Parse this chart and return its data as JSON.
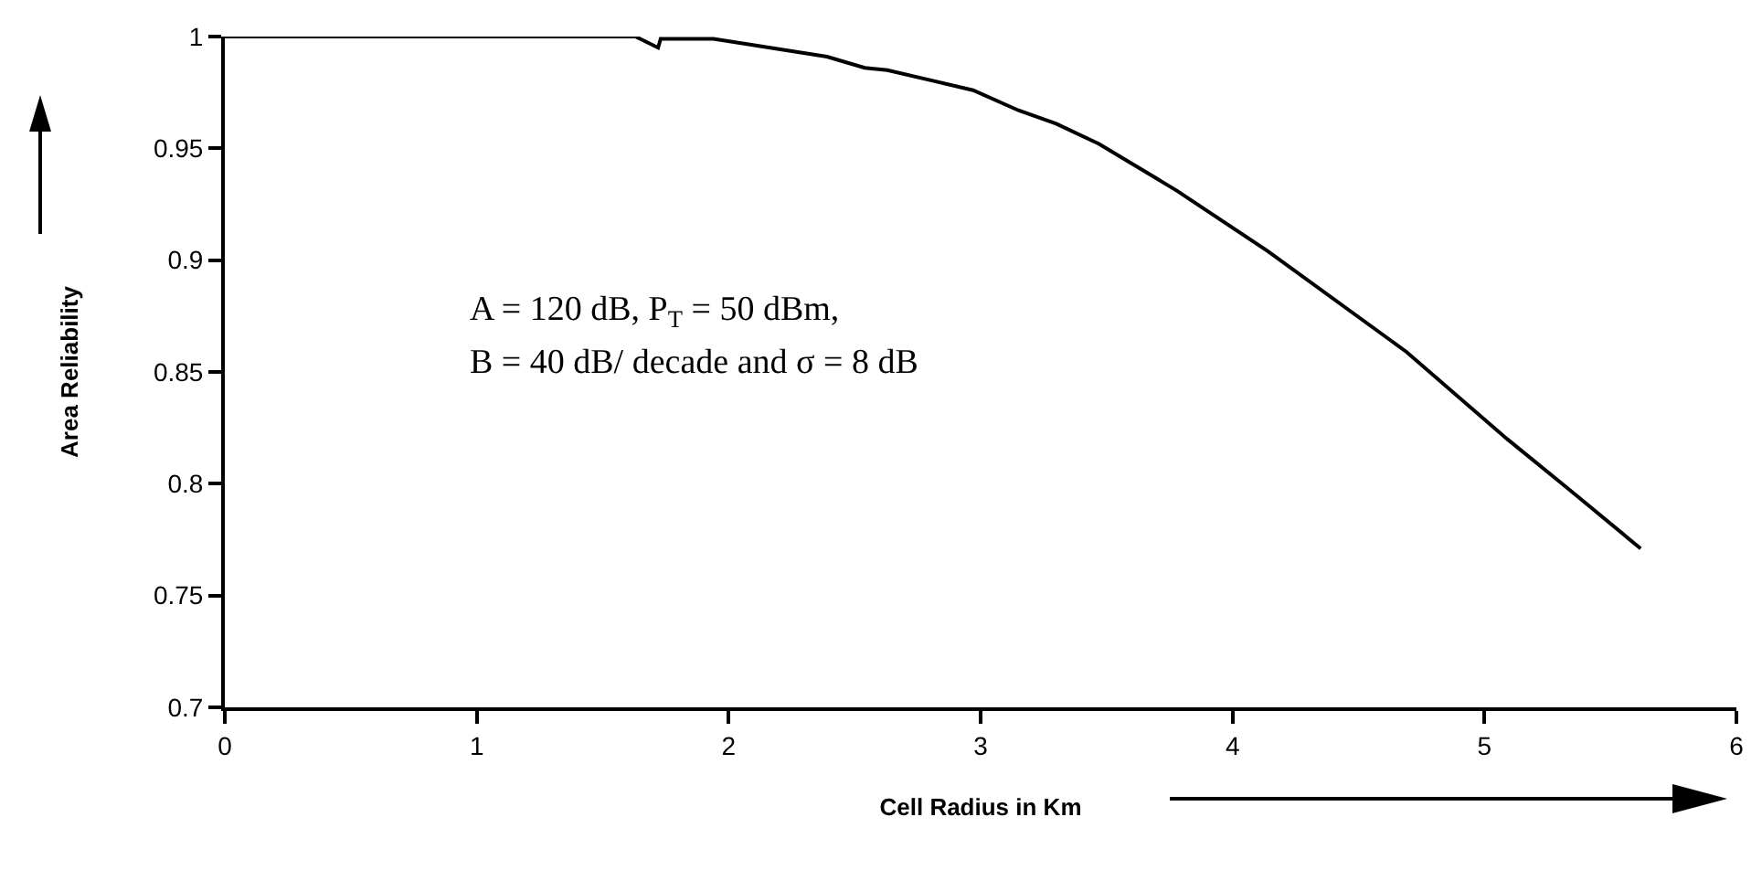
{
  "chart_data": {
    "type": "line",
    "xlabel": "Cell Radius in Km",
    "ylabel": "Area Reliability",
    "annotations": [
      "A = 120 dB, P$_{T}$ = 50 dBm,",
      "B = 40 dB/ decade and σ = 8 dB"
    ],
    "x": [
      0,
      1.63,
      1.72,
      1.73,
      1.94,
      2.39,
      2.54,
      2.63,
      2.97,
      3.15,
      3.3,
      3.47,
      3.78,
      4.14,
      4.69,
      5.09,
      5.33,
      5.62
    ],
    "series": [
      {
        "color": "#000000",
        "values": [
          1,
          1,
          0.995,
          0.999,
          0.999,
          0.991,
          0.986,
          0.985,
          0.976,
          0.967,
          0.961,
          0.952,
          0.931,
          0.904,
          0.859,
          0.82,
          0.798,
          0.771
        ]
      }
    ],
    "xlim": [
      0,
      6
    ],
    "ylim": [
      0.7,
      1
    ],
    "xticks": [
      0,
      1,
      2,
      3,
      4,
      5,
      6
    ],
    "yticks": [
      0.7,
      0.75,
      0.8,
      0.85,
      0.9,
      0.95,
      1
    ],
    "marker": "none",
    "line_style": "solid"
  }
}
